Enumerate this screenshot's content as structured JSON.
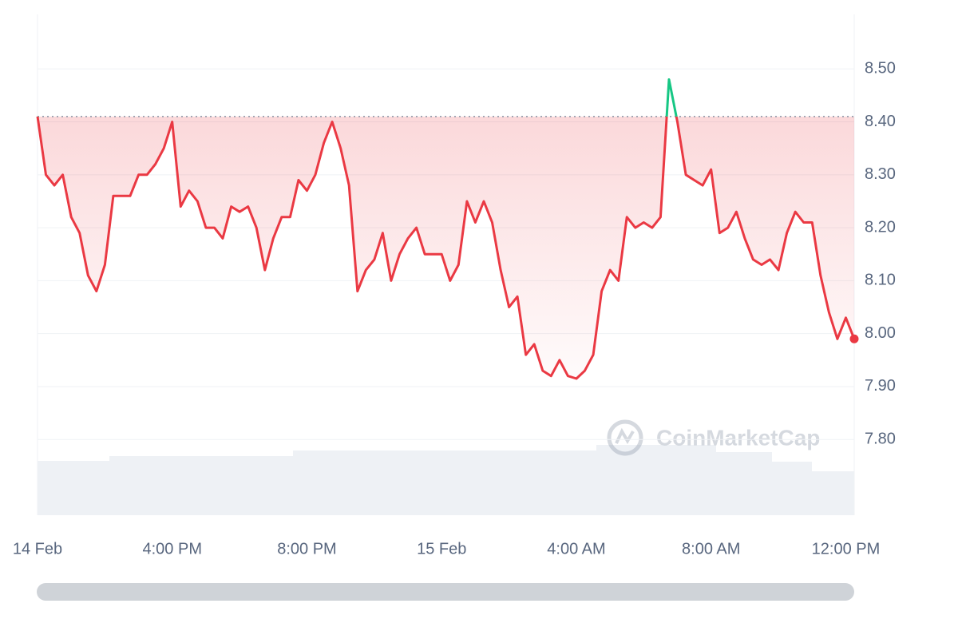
{
  "chart_data": {
    "type": "line",
    "watermark": "CoinMarketCap",
    "x": [
      0,
      0.25,
      0.5,
      0.75,
      1,
      1.25,
      1.5,
      1.75,
      2,
      2.25,
      2.5,
      2.75,
      3,
      3.25,
      3.5,
      3.75,
      4,
      4.25,
      4.5,
      4.75,
      5,
      5.25,
      5.5,
      5.75,
      6,
      6.25,
      6.5,
      6.75,
      7,
      7.25,
      7.5,
      7.75,
      8,
      8.25,
      8.5,
      8.75,
      9,
      9.25,
      9.5,
      9.75,
      10,
      10.25,
      10.5,
      10.75,
      11,
      11.25,
      11.5,
      11.75,
      12,
      12.25,
      12.5,
      12.75,
      13,
      13.25,
      13.5,
      13.75,
      14,
      14.25,
      14.5,
      14.75,
      15,
      15.25,
      15.5,
      15.75,
      16,
      16.25,
      16.5,
      16.75,
      17,
      17.25,
      17.5,
      17.75,
      18,
      18.25,
      18.5,
      18.75,
      19,
      19.25,
      19.5,
      19.75,
      20,
      20.25,
      20.5,
      20.75,
      21,
      21.25,
      21.5,
      21.75,
      22,
      22.25,
      22.5,
      22.75,
      23,
      23.25,
      23.5,
      23.75,
      24,
      24.25
    ],
    "series": [
      {
        "values": [
          8.41,
          8.3,
          8.28,
          8.3,
          8.22,
          8.19,
          8.11,
          8.08,
          8.13,
          8.26,
          8.26,
          8.26,
          8.3,
          8.3,
          8.32,
          8.35,
          8.4,
          8.24,
          8.27,
          8.25,
          8.2,
          8.2,
          8.18,
          8.24,
          8.23,
          8.24,
          8.2,
          8.12,
          8.18,
          8.22,
          8.22,
          8.29,
          8.27,
          8.3,
          8.36,
          8.4,
          8.35,
          8.28,
          8.08,
          8.12,
          8.14,
          8.19,
          8.1,
          8.15,
          8.18,
          8.2,
          8.15,
          8.15,
          8.15,
          8.1,
          8.13,
          8.25,
          8.21,
          8.25,
          8.21,
          8.12,
          8.05,
          8.07,
          7.96,
          7.98,
          7.93,
          7.92,
          7.95,
          7.92,
          7.915,
          7.93,
          7.96,
          8.08,
          8.12,
          8.1,
          8.22,
          8.2,
          8.21,
          8.2,
          8.22,
          8.48,
          8.4,
          8.3,
          8.29,
          8.28,
          8.31,
          8.19,
          8.2,
          8.23,
          8.18,
          8.14,
          8.13,
          8.14,
          8.12,
          8.19,
          8.23,
          8.21,
          8.21,
          8.11,
          8.04,
          7.99,
          8.03,
          7.99
        ]
      }
    ],
    "up_color": "#16c784",
    "down_color": "#ea3943",
    "xlim": [
      0,
      24.25
    ],
    "xticks": [
      {
        "value": 0,
        "label": "14 Feb"
      },
      {
        "value": 4,
        "label": "4:00 PM"
      },
      {
        "value": 8,
        "label": "8:00 PM"
      },
      {
        "value": 12,
        "label": "15 Feb"
      },
      {
        "value": 16,
        "label": "4:00 AM"
      },
      {
        "value": 20,
        "label": "8:00 AM"
      },
      {
        "value": 24,
        "label": "12:00 PM"
      }
    ],
    "ylim": [
      7.657,
      8.603
    ],
    "yticks": [
      {
        "value": 7.8,
        "label": "7.80"
      },
      {
        "value": 7.9,
        "label": "7.90"
      },
      {
        "value": 8.0,
        "label": "8.00"
      },
      {
        "value": 8.1,
        "label": "8.10"
      },
      {
        "value": 8.2,
        "label": "8.20"
      },
      {
        "value": 8.3,
        "label": "8.30"
      },
      {
        "value": 8.4,
        "label": "8.40"
      },
      {
        "value": 8.5,
        "label": "8.50"
      }
    ],
    "grid": true
  }
}
